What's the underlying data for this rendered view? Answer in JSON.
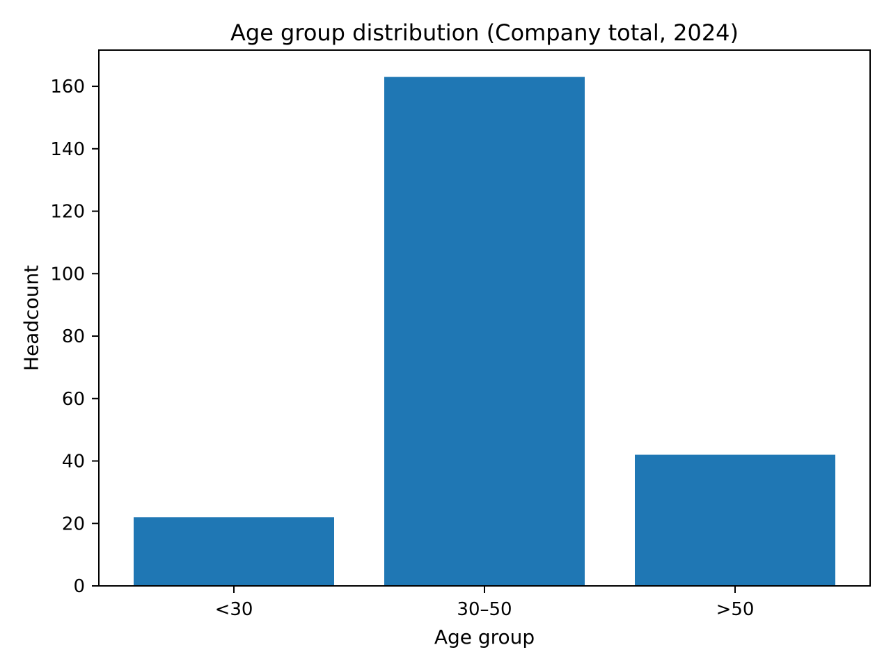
{
  "chart_data": {
    "type": "bar",
    "title": "Age group distribution (Company total, 2024)",
    "xlabel": "Age group",
    "ylabel": "Headcount",
    "categories": [
      "<30",
      "30–50",
      ">50"
    ],
    "values": [
      22,
      163,
      42
    ],
    "yticks": [
      0,
      20,
      40,
      60,
      80,
      100,
      120,
      140,
      160
    ],
    "ylim": [
      0,
      171.6
    ],
    "bar_color": "#1f77b4",
    "axis_color": "#000000",
    "background": "#ffffff",
    "grid": false,
    "legend_position": "none"
  }
}
